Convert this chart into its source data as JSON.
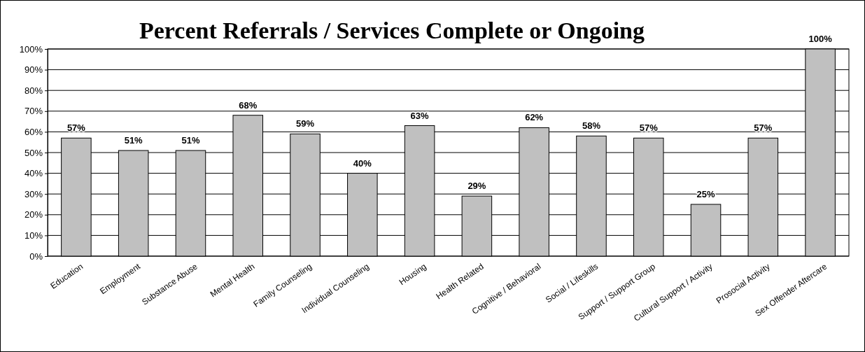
{
  "chart_data": {
    "type": "bar",
    "title": "Percent Referrals / Services Complete or Ongoing",
    "categories": [
      "Education",
      "Employment",
      "Substance Abuse",
      "Mental Health",
      "Family Counseling",
      "Individual Counseling",
      "Housing",
      "Health Related",
      "Cognitive / Behavioral",
      "Social / Lifeskills",
      "Support / Support Group",
      "Cultural Support / Activity",
      "Prosocial Activity",
      "Sex Offender Aftercare"
    ],
    "values": [
      57,
      51,
      51,
      68,
      59,
      40,
      63,
      29,
      62,
      58,
      57,
      25,
      57,
      100
    ],
    "value_labels": [
      "57%",
      "51%",
      "51%",
      "68%",
      "59%",
      "40%",
      "63%",
      "29%",
      "62%",
      "58%",
      "57%",
      "25%",
      "57%",
      "100%"
    ],
    "color": "#c0c0c0",
    "ylim": [
      0,
      100
    ],
    "yticks": [
      {
        "value": 0,
        "label": "0%"
      },
      {
        "value": 10,
        "label": "10%"
      },
      {
        "value": 20,
        "label": "20%"
      },
      {
        "value": 30,
        "label": "30%"
      },
      {
        "value": 40,
        "label": "40%"
      },
      {
        "value": 50,
        "label": "50%"
      },
      {
        "value": 60,
        "label": "60%"
      },
      {
        "value": 70,
        "label": "70%"
      },
      {
        "value": 80,
        "label": "80%"
      },
      {
        "value": 90,
        "label": "90%"
      },
      {
        "value": 100,
        "label": "100%"
      }
    ],
    "grid": "y"
  }
}
